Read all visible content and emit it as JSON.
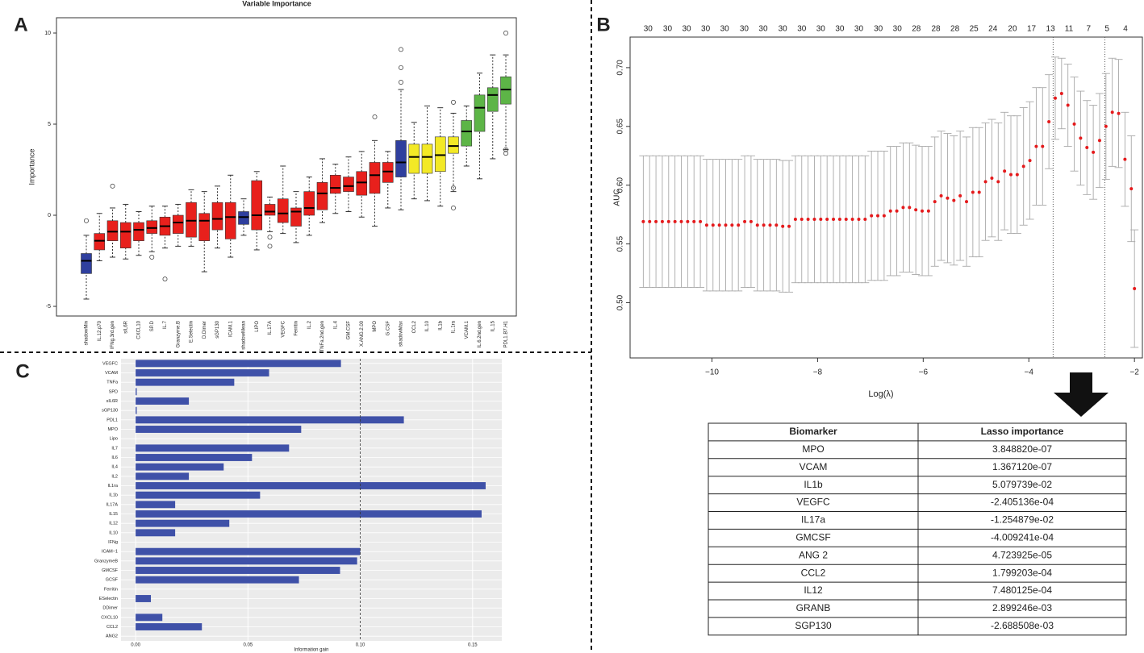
{
  "panel_labels": [
    "A",
    "B",
    "C"
  ],
  "chart_data": [
    {
      "type": "box",
      "title": "Variable Importance",
      "y_label": "Importance",
      "categories": [
        "shadowMin",
        "IL.12.p70",
        "IFNg.3rd.gen",
        "sIL6R",
        "CXCL10",
        "SP.D",
        "IL.7",
        "Granzyme.B",
        "E.Selectin",
        "D.Dimer",
        "sGP130",
        "ICAM.1",
        "shadowMean",
        "LIPO",
        "IL.17A",
        "VEGFC",
        "Ferritin",
        "IL.2",
        "TNFa.2nd.gen",
        "IL.4",
        "GM.CSF",
        "X.ANG.2.00",
        "MPO",
        "G.CSF",
        "shadowMax",
        "CCL2",
        "IL.10",
        "IL1b",
        "IL.1ra",
        "VCAM.1",
        "IL.6.2nd.gen",
        "IL.15",
        "PDL1.B7.H1"
      ],
      "colors": [
        "#2f3f9e",
        "#e8201c",
        "#e8201c",
        "#e8201c",
        "#e8201c",
        "#e8201c",
        "#e8201c",
        "#e8201c",
        "#e8201c",
        "#e8201c",
        "#e8201c",
        "#e8201c",
        "#2f3f9e",
        "#e8201c",
        "#e8201c",
        "#e8201c",
        "#e8201c",
        "#e8201c",
        "#e8201c",
        "#e8201c",
        "#e8201c",
        "#e8201c",
        "#e8201c",
        "#e8201c",
        "#2f3f9e",
        "#f3e926",
        "#f3e926",
        "#f3e926",
        "#f3e926",
        "#5db547",
        "#5db547",
        "#5db547",
        "#5db547"
      ],
      "boxes": [
        {
          "min": -4.6,
          "q1": -3.2,
          "median": -2.5,
          "q3": -2.1,
          "max": -1.1,
          "outliers": [
            -0.3
          ]
        },
        {
          "min": -2.5,
          "q1": -1.9,
          "median": -1.4,
          "q3": -1.0,
          "max": 0.1,
          "outliers": []
        },
        {
          "min": -2.3,
          "q1": -1.4,
          "median": -0.9,
          "q3": -0.3,
          "max": 0.4,
          "outliers": [
            1.6
          ]
        },
        {
          "min": -2.4,
          "q1": -1.8,
          "median": -0.9,
          "q3": -0.4,
          "max": 0.6,
          "outliers": []
        },
        {
          "min": -2.2,
          "q1": -1.4,
          "median": -0.8,
          "q3": -0.4,
          "max": 0.2,
          "outliers": []
        },
        {
          "min": -2.0,
          "q1": -1.0,
          "median": -0.7,
          "q3": -0.3,
          "max": 0.5,
          "outliers": [
            -2.3
          ]
        },
        {
          "min": -1.8,
          "q1": -1.1,
          "median": -0.6,
          "q3": -0.1,
          "max": 0.5,
          "outliers": [
            -3.5
          ]
        },
        {
          "min": -1.7,
          "q1": -1.0,
          "median": -0.4,
          "q3": 0.0,
          "max": 0.6,
          "outliers": []
        },
        {
          "min": -1.7,
          "q1": -1.2,
          "median": -0.3,
          "q3": 0.7,
          "max": 1.4,
          "outliers": []
        },
        {
          "min": -3.1,
          "q1": -1.4,
          "median": -0.3,
          "q3": 0.1,
          "max": 1.3,
          "outliers": []
        },
        {
          "min": -1.8,
          "q1": -0.8,
          "median": -0.2,
          "q3": 0.7,
          "max": 1.6,
          "outliers": []
        },
        {
          "min": -2.3,
          "q1": -1.3,
          "median": -0.1,
          "q3": 0.7,
          "max": 2.2,
          "outliers": []
        },
        {
          "min": -1.1,
          "q1": -0.5,
          "median": -0.1,
          "q3": 0.2,
          "max": 0.9,
          "outliers": []
        },
        {
          "min": -1.9,
          "q1": -0.8,
          "median": 0.0,
          "q3": 1.9,
          "max": 2.4,
          "outliers": []
        },
        {
          "min": -0.9,
          "q1": 0.0,
          "median": 0.2,
          "q3": 0.6,
          "max": 1.0,
          "outliers": [
            -1.2,
            -1.7
          ]
        },
        {
          "min": -1.0,
          "q1": -0.4,
          "median": 0.1,
          "q3": 0.9,
          "max": 2.7,
          "outliers": []
        },
        {
          "min": -1.5,
          "q1": -0.6,
          "median": 0.2,
          "q3": 0.4,
          "max": 1.3,
          "outliers": []
        },
        {
          "min": -1.1,
          "q1": 0.0,
          "median": 0.4,
          "q3": 1.3,
          "max": 2.1,
          "outliers": []
        },
        {
          "min": -0.4,
          "q1": 0.3,
          "median": 1.2,
          "q3": 1.8,
          "max": 3.1,
          "outliers": []
        },
        {
          "min": 0.1,
          "q1": 1.2,
          "median": 1.5,
          "q3": 2.2,
          "max": 2.8,
          "outliers": []
        },
        {
          "min": 0.2,
          "q1": 1.3,
          "median": 1.6,
          "q3": 2.1,
          "max": 3.2,
          "outliers": []
        },
        {
          "min": -0.1,
          "q1": 1.1,
          "median": 1.8,
          "q3": 2.4,
          "max": 3.5,
          "outliers": []
        },
        {
          "min": -0.6,
          "q1": 1.2,
          "median": 2.2,
          "q3": 2.9,
          "max": 4.1,
          "outliers": [
            5.4
          ]
        },
        {
          "min": 0.4,
          "q1": 1.8,
          "median": 2.4,
          "q3": 2.9,
          "max": 3.5,
          "outliers": []
        },
        {
          "min": 0.3,
          "q1": 2.1,
          "median": 2.9,
          "q3": 4.1,
          "max": 6.9,
          "outliers": [
            7.3,
            8.1,
            9.1
          ]
        },
        {
          "min": 0.9,
          "q1": 2.3,
          "median": 3.2,
          "q3": 3.9,
          "max": 5.1,
          "outliers": []
        },
        {
          "min": 0.8,
          "q1": 2.3,
          "median": 3.2,
          "q3": 3.9,
          "max": 6.0,
          "outliers": []
        },
        {
          "min": 0.5,
          "q1": 2.4,
          "median": 3.3,
          "q3": 4.3,
          "max": 5.9,
          "outliers": []
        },
        {
          "min": 1.3,
          "q1": 3.4,
          "median": 3.8,
          "q3": 4.3,
          "max": 5.6,
          "outliers": [
            6.2,
            1.5,
            0.4
          ]
        },
        {
          "min": 2.7,
          "q1": 3.8,
          "median": 4.6,
          "q3": 5.2,
          "max": 6.0,
          "outliers": []
        },
        {
          "min": 2.0,
          "q1": 4.6,
          "median": 5.9,
          "q3": 6.6,
          "max": 7.8,
          "outliers": []
        },
        {
          "min": 3.1,
          "q1": 5.7,
          "median": 6.6,
          "q3": 7.0,
          "max": 8.8,
          "outliers": []
        },
        {
          "min": 3.6,
          "q1": 6.1,
          "median": 6.9,
          "q3": 7.6,
          "max": 8.8,
          "outliers": [
            10.0,
            3.4,
            3.6
          ]
        }
      ],
      "ylim": [
        -5.53,
        10.84
      ],
      "yticks": [
        -5,
        0,
        5,
        10
      ]
    },
    {
      "type": "errorbar",
      "x_label": "Log(λ)",
      "y_label": "AUC",
      "color": "#e41a1c",
      "bar_color": "#a9a9a9",
      "x": [
        -11.3,
        -11.18,
        -11.06,
        -10.94,
        -10.82,
        -10.7,
        -10.58,
        -10.46,
        -10.34,
        -10.22,
        -10.1,
        -9.98,
        -9.86,
        -9.74,
        -9.62,
        -9.5,
        -9.38,
        -9.26,
        -9.14,
        -9.02,
        -8.9,
        -8.78,
        -8.66,
        -8.54,
        -8.42,
        -8.3,
        -8.18,
        -8.06,
        -7.94,
        -7.82,
        -7.7,
        -7.58,
        -7.46,
        -7.34,
        -7.22,
        -7.1,
        -6.98,
        -6.86,
        -6.74,
        -6.62,
        -6.5,
        -6.38,
        -6.26,
        -6.14,
        -6.02,
        -5.9,
        -5.78,
        -5.66,
        -5.54,
        -5.42,
        -5.3,
        -5.18,
        -5.06,
        -4.94,
        -4.82,
        -4.7,
        -4.58,
        -4.46,
        -4.34,
        -4.22,
        -4.1,
        -3.98,
        -3.86,
        -3.74,
        -3.62,
        -3.5,
        -3.38,
        -3.26,
        -3.14,
        -3.02,
        -2.9,
        -2.78,
        -2.66,
        -2.54,
        -2.42,
        -2.3,
        -2.18,
        -2.06,
        -2.0
      ],
      "values": [
        0.569,
        0.569,
        0.569,
        0.569,
        0.569,
        0.569,
        0.569,
        0.569,
        0.569,
        0.569,
        0.566,
        0.566,
        0.566,
        0.566,
        0.566,
        0.566,
        0.569,
        0.569,
        0.566,
        0.566,
        0.566,
        0.566,
        0.565,
        0.565,
        0.571,
        0.571,
        0.571,
        0.571,
        0.571,
        0.571,
        0.571,
        0.571,
        0.571,
        0.571,
        0.571,
        0.571,
        0.574,
        0.574,
        0.574,
        0.578,
        0.578,
        0.581,
        0.581,
        0.579,
        0.578,
        0.578,
        0.586,
        0.591,
        0.589,
        0.587,
        0.591,
        0.586,
        0.594,
        0.594,
        0.603,
        0.606,
        0.603,
        0.612,
        0.609,
        0.609,
        0.616,
        0.621,
        0.633,
        0.633,
        0.654,
        0.674,
        0.678,
        0.668,
        0.652,
        0.64,
        0.632,
        0.628,
        0.638,
        0.65,
        0.662,
        0.661,
        0.622,
        0.597,
        0.512
      ],
      "errors": [
        0.056,
        0.056,
        0.056,
        0.056,
        0.056,
        0.056,
        0.056,
        0.056,
        0.056,
        0.056,
        0.056,
        0.056,
        0.056,
        0.056,
        0.056,
        0.056,
        0.056,
        0.056,
        0.056,
        0.056,
        0.056,
        0.056,
        0.056,
        0.056,
        0.054,
        0.054,
        0.054,
        0.054,
        0.054,
        0.054,
        0.054,
        0.054,
        0.054,
        0.054,
        0.054,
        0.054,
        0.055,
        0.055,
        0.055,
        0.055,
        0.055,
        0.055,
        0.055,
        0.055,
        0.055,
        0.055,
        0.055,
        0.055,
        0.055,
        0.055,
        0.055,
        0.055,
        0.055,
        0.055,
        0.05,
        0.05,
        0.05,
        0.05,
        0.05,
        0.05,
        0.05,
        0.05,
        0.05,
        0.05,
        0.04,
        0.035,
        0.03,
        0.035,
        0.04,
        0.04,
        0.04,
        0.04,
        0.04,
        0.045,
        0.046,
        0.046,
        0.04,
        0.045,
        0.05
      ],
      "xlim": [
        -11.55,
        -1.85
      ],
      "ylim": [
        0.453,
        0.726
      ],
      "xticks": [
        {
          "value": -10,
          "label": "−10"
        },
        {
          "value": -8,
          "label": "−8"
        },
        {
          "value": -6,
          "label": "−6"
        },
        {
          "value": -4,
          "label": "−4"
        },
        {
          "value": -2,
          "label": "−2"
        }
      ],
      "yticks": [
        {
          "value": 0.5,
          "label": "0.50"
        },
        0.55,
        {
          "value": 0.6,
          "label": "0.60"
        },
        0.65,
        {
          "value": 0.7,
          "label": "0.70"
        }
      ],
      "top_ticks": [
        {
          "value": -11.21,
          "label": "30"
        },
        {
          "value": -10.84,
          "label": "30"
        },
        {
          "value": -10.48,
          "label": "30"
        },
        {
          "value": -10.12,
          "label": "30"
        },
        {
          "value": -9.76,
          "label": "30"
        },
        {
          "value": -9.39,
          "label": "30"
        },
        {
          "value": -9.03,
          "label": "30"
        },
        {
          "value": -8.66,
          "label": "30"
        },
        {
          "value": -8.3,
          "label": "30"
        },
        {
          "value": -7.94,
          "label": "30"
        },
        {
          "value": -7.58,
          "label": "30"
        },
        {
          "value": -7.22,
          "label": "30"
        },
        {
          "value": -6.85,
          "label": "30"
        },
        {
          "value": -6.49,
          "label": "30"
        },
        {
          "value": -6.13,
          "label": "28"
        },
        {
          "value": -5.76,
          "label": "28"
        },
        {
          "value": -5.4,
          "label": "28"
        },
        {
          "value": -5.04,
          "label": "25"
        },
        {
          "value": -4.68,
          "label": "24"
        },
        {
          "value": -4.31,
          "label": "20"
        },
        {
          "value": -3.95,
          "label": "17"
        },
        {
          "value": -3.59,
          "label": "13"
        },
        {
          "value": -3.24,
          "label": "11"
        },
        {
          "value": -2.87,
          "label": "7"
        },
        {
          "value": -2.52,
          "label": "5"
        },
        {
          "value": -2.17,
          "label": "4"
        }
      ],
      "vlines": [
        -3.54,
        -2.56
      ]
    },
    {
      "type": "bar",
      "orientation": "horizontal",
      "x_label": "Information gain",
      "color": "#3f51a8",
      "categories": [
        "VEGFC",
        "VCAM",
        "TNFa",
        "SPD",
        "sIL6R",
        "sGP130",
        "PDL1",
        "MPO",
        "Lipo",
        "IL7",
        "IL6",
        "IL4",
        "IL2",
        "IL1ra",
        "IL1b",
        "IL17A",
        "IL15",
        "IL12",
        "IL10",
        "IFNg",
        "ICAM−1",
        "GranzymeB",
        "GMCSF",
        "GCSF",
        "Ferritin",
        "ESelectin",
        "DDimer",
        "CXCL10",
        "CCL2",
        "ANG2"
      ],
      "values": [
        0.0914,
        0.0594,
        0.0439,
        0.0005,
        0.0237,
        0.0005,
        0.1194,
        0.0737,
        0,
        0.0683,
        0.0518,
        0.0392,
        0.0237,
        0.1558,
        0.0554,
        0.0176,
        0.154,
        0.0417,
        0.0176,
        0,
        0.1,
        0.0986,
        0.091,
        0.0727,
        0,
        0.0068,
        0,
        0.0119,
        0.0295,
        0
      ],
      "xlim": [
        -0.0065,
        0.163
      ],
      "xticks": [
        {
          "value": 0,
          "label": "0.00"
        },
        0.05,
        {
          "value": 0.1,
          "label": "0.10"
        },
        0.15
      ],
      "vline": 0.1,
      "grid": true
    }
  ],
  "table": {
    "header": [
      "Biomarker",
      "Lasso importance"
    ],
    "rows": [
      [
        "MPO",
        "3.848820e-07"
      ],
      [
        "VCAM",
        "1.367120e-07"
      ],
      [
        "IL1b",
        "5.079739e-02"
      ],
      [
        "VEGFC",
        "-2.405136e-04"
      ],
      [
        "IL17a",
        "-1.254879e-02"
      ],
      [
        "GMCSF",
        "-4.009241e-04"
      ],
      [
        "ANG 2",
        "4.723925e-05"
      ],
      [
        "CCL2",
        "1.799203e-04"
      ],
      [
        "IL12",
        "7.480125e-04"
      ],
      [
        "GRANB",
        "2.899246e-03"
      ],
      [
        "SGP130",
        "-2.688508e-03"
      ]
    ]
  }
}
